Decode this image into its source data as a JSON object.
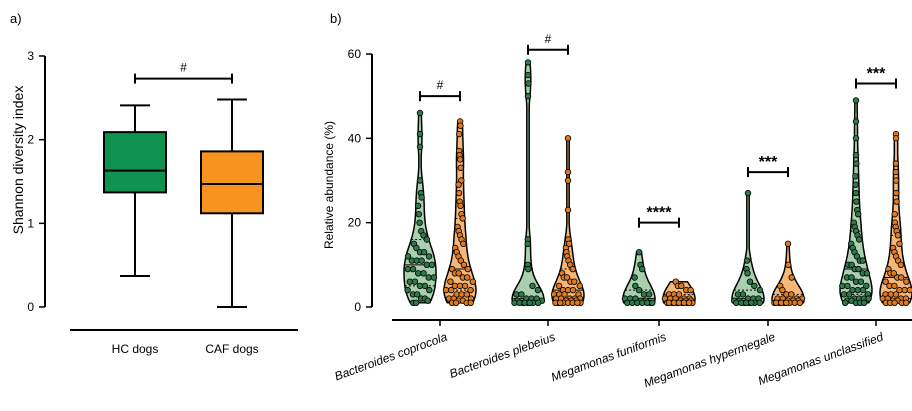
{
  "chart_data": [
    {
      "type": "box",
      "panel_label": "a)",
      "title": "",
      "xlabel": "",
      "ylabel": "Shannon diversity index",
      "ylim": [
        0,
        3
      ],
      "yticks": [
        "0",
        "1",
        "2",
        "3"
      ],
      "categories": [
        "HC dogs",
        "CAF dogs"
      ],
      "colors": [
        "#0f9150",
        "#f7931e"
      ],
      "boxes": [
        {
          "category": "HC dogs",
          "min": 0.37,
          "q1": 1.37,
          "median": 1.63,
          "q3": 2.09,
          "max": 2.41
        },
        {
          "category": "CAF dogs",
          "min": 0.0,
          "q1": 1.12,
          "median": 1.47,
          "q3": 1.86,
          "max": 2.48
        }
      ],
      "annotations": [
        {
          "between": [
            "HC dogs",
            "CAF dogs"
          ],
          "label": "#",
          "y": 2.73
        }
      ]
    },
    {
      "type": "violin",
      "panel_label": "b)",
      "title": "",
      "xlabel": "",
      "ylabel": "Relative abundance (%)",
      "ylim": [
        0,
        60
      ],
      "yticks": [
        "0",
        "20",
        "40",
        "60"
      ],
      "categories": [
        "Bacteroides coprocola",
        "Bacteroides plebeius",
        "Megamonas funiformis",
        "Megamonas hypermegale",
        "Megamonas unclassified"
      ],
      "groups": [
        {
          "name": "HC dogs",
          "fill": "#a9cfae",
          "point": "#2d7a4a"
        },
        {
          "name": "CAF dogs",
          "fill": "#f5b87a",
          "point": "#e07a1f"
        }
      ],
      "series": [
        {
          "category": "Bacteroides coprocola",
          "group": "HC dogs",
          "max": 46,
          "points": [
            46,
            41,
            38,
            30,
            27,
            26,
            24,
            22,
            20,
            18,
            17,
            16,
            15,
            14,
            13,
            13,
            12,
            12,
            11,
            11,
            11,
            10,
            10,
            9,
            9,
            8,
            8,
            7,
            7,
            6,
            6,
            5,
            5,
            4,
            4,
            3,
            3,
            2,
            2,
            1.5,
            1,
            1
          ]
        },
        {
          "category": "Bacteroides coprocola",
          "group": "CAF dogs",
          "max": 44,
          "points": [
            44,
            43,
            41,
            37,
            36,
            35,
            33,
            30,
            29,
            27,
            25,
            24,
            22,
            21,
            19,
            18,
            17,
            16,
            15,
            14,
            13,
            12,
            11,
            10,
            9,
            9,
            8,
            8,
            7,
            7,
            6,
            6,
            5,
            5,
            5,
            4,
            4,
            4,
            3,
            3,
            3,
            2,
            2,
            2,
            1.5,
            1.5,
            1,
            1,
            1,
            1
          ]
        },
        {
          "category": "Bacteroides plebeius",
          "group": "HC dogs",
          "max": 58,
          "points": [
            58,
            55,
            53,
            50,
            16,
            15,
            10,
            9,
            5,
            4,
            3,
            3,
            2,
            2,
            2,
            1.5,
            1.5,
            1,
            1,
            1,
            1,
            1,
            1,
            1,
            1
          ]
        },
        {
          "category": "Bacteroides plebeius",
          "group": "CAF dogs",
          "max": 40,
          "points": [
            40,
            32,
            30,
            23,
            16,
            15,
            14,
            13,
            12,
            11,
            10,
            9,
            8,
            7,
            7,
            6,
            6,
            5,
            5,
            4,
            4,
            4,
            3,
            3,
            3,
            3,
            2,
            2,
            2,
            2,
            2,
            1.5,
            1.5,
            1.5,
            1,
            1,
            1,
            1,
            1,
            1,
            1,
            1
          ]
        },
        {
          "category": "Megamonas funiformis",
          "group": "HC dogs",
          "max": 13,
          "points": [
            13,
            10,
            9,
            7,
            5,
            4,
            3,
            3,
            2,
            2,
            2,
            1.5,
            1.5,
            1,
            1,
            1,
            1,
            1,
            1,
            1
          ]
        },
        {
          "category": "Megamonas funiformis",
          "group": "CAF dogs",
          "max": 6,
          "points": [
            6,
            5,
            5,
            4,
            4,
            3,
            3,
            3,
            2,
            2,
            2,
            2,
            2,
            1.5,
            1.5,
            1.5,
            1,
            1,
            1,
            1,
            1,
            1,
            1,
            1,
            1,
            1,
            1
          ]
        },
        {
          "category": "Megamonas hypermegale",
          "group": "HC dogs",
          "max": 27,
          "points": [
            27,
            11,
            9,
            8,
            6,
            5,
            4,
            3,
            3,
            2,
            2,
            2,
            1.5,
            1.5,
            1,
            1,
            1,
            1,
            1,
            1,
            1,
            1
          ]
        },
        {
          "category": "Megamonas hypermegale",
          "group": "CAF dogs",
          "max": 15,
          "points": [
            15,
            10,
            7,
            5,
            4,
            3,
            3,
            2,
            2,
            2,
            2,
            1.5,
            1.5,
            1.5,
            1,
            1,
            1,
            1,
            1,
            1,
            1,
            1,
            1
          ]
        },
        {
          "category": "Megamonas unclassified",
          "group": "HC dogs",
          "max": 49,
          "points": [
            49,
            44,
            40,
            36,
            34,
            31,
            29,
            27,
            25,
            23,
            22,
            20,
            19,
            18,
            17,
            16,
            15,
            14,
            13,
            12,
            11,
            11,
            10,
            10,
            9,
            9,
            8,
            8,
            7,
            7,
            6,
            6,
            5,
            5,
            5,
            4,
            4,
            4,
            3,
            3,
            3,
            2,
            2,
            2,
            2,
            1.5,
            1.5,
            1,
            1,
            1,
            1
          ]
        },
        {
          "category": "Megamonas unclassified",
          "group": "CAF dogs",
          "max": 41,
          "points": [
            41,
            40,
            34,
            32,
            30,
            27,
            25,
            22,
            20,
            19,
            18,
            17,
            15,
            14,
            13,
            12,
            11,
            10,
            9,
            8,
            8,
            7,
            7,
            6,
            6,
            5,
            5,
            4,
            4,
            4,
            3,
            3,
            3,
            2,
            2,
            2,
            2,
            1.5,
            1.5,
            1,
            1,
            1,
            1,
            1
          ]
        }
      ],
      "annotations": [
        {
          "category": "Bacteroides coprocola",
          "label": "#",
          "y": 50
        },
        {
          "category": "Bacteroides plebeius",
          "label": "#",
          "y": 61
        },
        {
          "category": "Megamonas funiformis",
          "label": "****",
          "y": 20
        },
        {
          "category": "Megamonas hypermegale",
          "label": "***",
          "y": 32
        },
        {
          "category": "Megamonas unclassified",
          "label": "***",
          "y": 53
        }
      ]
    }
  ]
}
